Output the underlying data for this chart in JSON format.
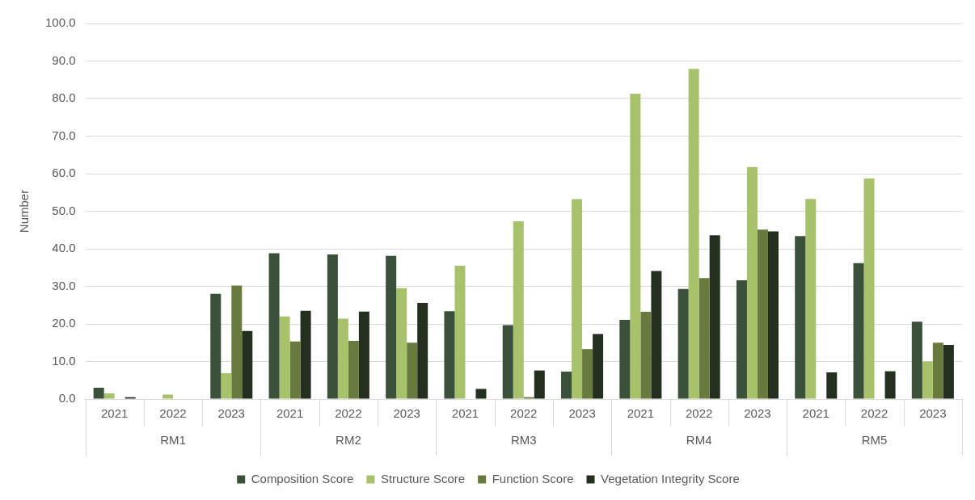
{
  "chart_data": {
    "type": "bar",
    "ylabel": "Number",
    "categories": [
      "2021",
      "2022",
      "2023",
      "2021",
      "2022",
      "2023",
      "2021",
      "2022",
      "2023",
      "2021",
      "2022",
      "2023",
      "2021",
      "2022",
      "2023"
    ],
    "annotations": [
      "RM1",
      "RM2",
      "RM3",
      "RM4",
      "RM5"
    ],
    "series": [
      {
        "name": "Composition Score",
        "color": "#3b5038",
        "values": [
          3.0,
          0,
          28.0,
          38.8,
          38.5,
          38.1,
          23.4,
          19.7,
          7.3,
          21.1,
          29.3,
          31.6,
          43.4,
          36.2,
          20.6
        ]
      },
      {
        "name": "Structure Score",
        "color": "#a7c26b",
        "values": [
          1.5,
          1.2,
          6.9,
          22.0,
          21.4,
          29.5,
          35.5,
          47.3,
          53.2,
          81.3,
          87.9,
          61.8,
          53.3,
          58.7,
          10.0
        ]
      },
      {
        "name": "Function Score",
        "color": "#687a3e",
        "values": [
          0,
          0,
          30.2,
          15.3,
          15.5,
          15.0,
          0,
          0.5,
          13.3,
          23.2,
          32.2,
          45.1,
          0,
          0,
          15.0
        ]
      },
      {
        "name": "Vegetation Integrity Score",
        "color": "#24301f",
        "values": [
          0.5,
          0,
          18.1,
          23.5,
          23.3,
          25.6,
          2.7,
          7.6,
          17.3,
          34.1,
          43.6,
          44.6,
          7.1,
          7.4,
          14.4
        ]
      }
    ],
    "ylim": [
      0,
      100
    ],
    "yticks": [
      {
        "value": 0,
        "label": "0.0"
      },
      {
        "value": 10,
        "label": "10.0"
      },
      {
        "value": 20,
        "label": "20.0"
      },
      {
        "value": 30,
        "label": "30.0"
      },
      {
        "value": 40,
        "label": "40.0"
      },
      {
        "value": 50,
        "label": "50.0"
      },
      {
        "value": 60,
        "label": "60.0"
      },
      {
        "value": 70,
        "label": "70.0"
      },
      {
        "value": 80,
        "label": "80.0"
      },
      {
        "value": 90,
        "label": "90.0"
      },
      {
        "value": 100,
        "label": "100.0"
      }
    ],
    "grid": "y",
    "legend": "bottom"
  }
}
